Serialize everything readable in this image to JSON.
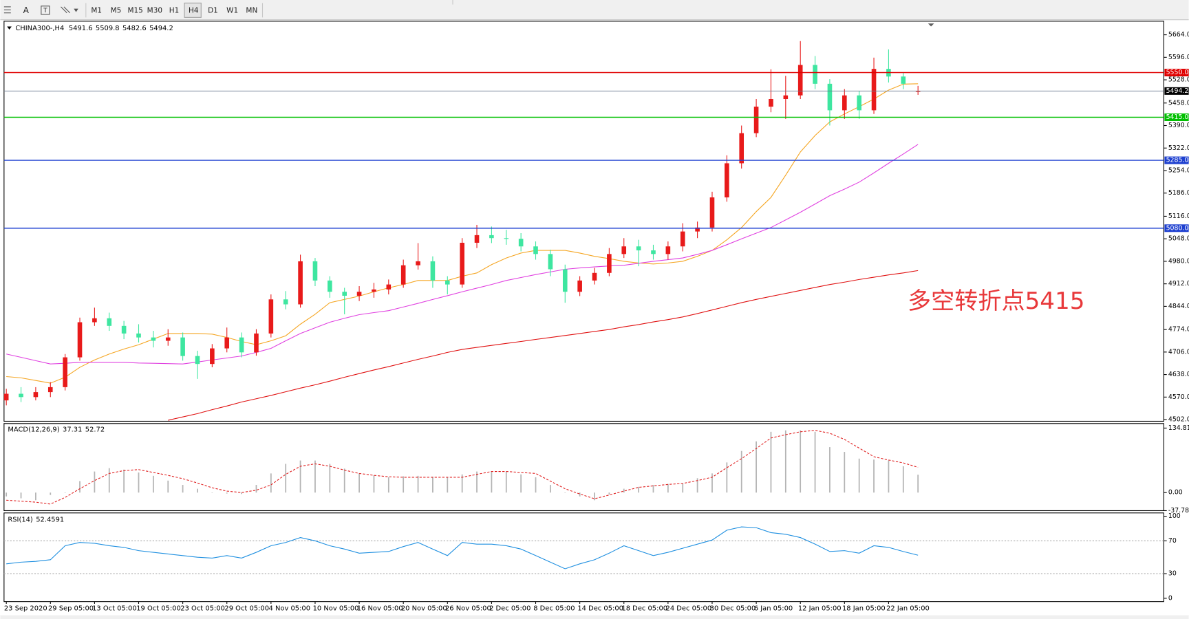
{
  "toolbar": {
    "text_tool": "A",
    "periods": [
      "M1",
      "M5",
      "M15",
      "M30",
      "H1",
      "H4",
      "D1",
      "W1",
      "MN"
    ]
  },
  "chart_data": [
    {
      "type": "candlestick",
      "symbol": "CHINA300-,H4",
      "annotation": "多空转折点5415",
      "up_color": "#e81a1a",
      "down_color": "#3ee6a0",
      "categories": [
        "23 Sep 2020",
        null,
        null,
        "29 Sep 05:00",
        null,
        null,
        "13 Oct 05:00",
        null,
        null,
        "19 Oct 05:00",
        null,
        null,
        "23 Oct 05:00",
        null,
        null,
        "29 Oct 05:00",
        null,
        null,
        "4 Nov 05:00",
        null,
        null,
        "10 Nov 05:00",
        null,
        null,
        "16 Nov 05:00",
        null,
        null,
        "20 Nov 05:00",
        null,
        null,
        "26 Nov 05:00",
        null,
        null,
        "2 Dec 05:00",
        null,
        null,
        "8 Dec 05:00",
        null,
        null,
        "14 Dec 05:00",
        null,
        null,
        "18 Dec 05:00",
        null,
        null,
        "24 Dec 05:00",
        null,
        null,
        "30 Dec 05:00",
        null,
        null,
        "6 Jan 05:00",
        null,
        null,
        "12 Jan 05:00",
        null,
        null,
        "18 Jan 05:00",
        null,
        null,
        "22 Jan 05:00",
        null,
        null
      ],
      "open": [
        4560,
        4580,
        4570,
        4585,
        4600,
        4690,
        4796,
        4808,
        4785,
        4762,
        4750,
        4740,
        4750,
        4694,
        4670,
        4717,
        4750,
        4705,
        4762,
        4865,
        4850,
        4980,
        4922,
        4888,
        4876,
        4888,
        4895,
        4910,
        4968,
        4980,
        4922,
        4910,
        5036,
        5059,
        5050,
        5048,
        5025,
        5002,
        4956,
        4888,
        4922,
        4945,
        5002,
        5025,
        5013,
        5002,
        5025,
        5070,
        5082,
        5173,
        5276,
        5367,
        5447,
        5470,
        5481,
        5573,
        5516,
        5436,
        5481,
        5436,
        5561,
        5538,
        5491.6
      ],
      "high": [
        4595,
        4600,
        4600,
        4615,
        4700,
        4810,
        4840,
        4825,
        4800,
        4790,
        4770,
        4775,
        4765,
        4710,
        4730,
        4780,
        4765,
        4775,
        4880,
        4890,
        5000,
        4990,
        4935,
        4900,
        4905,
        4915,
        4925,
        4985,
        5035,
        4995,
        4935,
        5050,
        5090,
        5085,
        5075,
        5065,
        5040,
        5015,
        4970,
        4935,
        4960,
        5020,
        5050,
        5045,
        5030,
        5040,
        5095,
        5100,
        5190,
        5300,
        5390,
        5470,
        5560,
        5540,
        5645,
        5600,
        5530,
        5500,
        5495,
        5595,
        5620,
        5550,
        5509.8
      ],
      "low": [
        4545,
        4555,
        4560,
        4570,
        4590,
        4680,
        4785,
        4770,
        4745,
        4735,
        4720,
        4725,
        4680,
        4625,
        4660,
        4705,
        4690,
        4695,
        4750,
        4835,
        4840,
        4905,
        4870,
        4820,
        4860,
        4870,
        4880,
        4900,
        4955,
        4900,
        4880,
        4900,
        5020,
        5035,
        5030,
        5010,
        4985,
        4935,
        4855,
        4875,
        4910,
        4935,
        4990,
        4965,
        4985,
        4985,
        5010,
        5050,
        5070,
        5160,
        5260,
        5355,
        5430,
        5410,
        5470,
        5500,
        5390,
        5410,
        5410,
        5425,
        5520,
        5500,
        5482.6
      ],
      "close": [
        4580,
        4570,
        4585,
        4600,
        4690,
        4796,
        4808,
        4785,
        4762,
        4750,
        4740,
        4750,
        4694,
        4670,
        4717,
        4750,
        4705,
        4762,
        4865,
        4850,
        4980,
        4922,
        4888,
        4876,
        4888,
        4895,
        4910,
        4968,
        4980,
        4922,
        4910,
        5036,
        5059,
        5050,
        5048,
        5025,
        5002,
        4956,
        4888,
        4922,
        4945,
        5002,
        5025,
        5013,
        5002,
        5025,
        5070,
        5082,
        5173,
        5276,
        5367,
        5447,
        5470,
        5481,
        5573,
        5516,
        5436,
        5481,
        5436,
        5561,
        5538,
        5516,
        5494.2
      ],
      "series": [
        {
          "color": "#f5a623",
          "values": [
            4632,
            4628,
            4620,
            4612,
            4630,
            4660,
            4682,
            4700,
            4715,
            4728,
            4745,
            4762,
            4762,
            4762,
            4760,
            4750,
            4738,
            4728,
            4740,
            4755,
            4790,
            4820,
            4855,
            4865,
            4875,
            4888,
            4900,
            4910,
            4922,
            4922,
            4922,
            4935,
            4945,
            4970,
            4990,
            5005,
            5013,
            5013,
            5013,
            5005,
            4995,
            4988,
            4980,
            4975,
            4972,
            4975,
            4980,
            4995,
            5013,
            5045,
            5082,
            5130,
            5173,
            5240,
            5310,
            5360,
            5401,
            5425,
            5447,
            5470,
            5497,
            5515,
            5516
          ]
        },
        {
          "color": "#e040e0",
          "values": [
            4700,
            4690,
            4680,
            4670,
            4672,
            4675,
            4675,
            4675,
            4675,
            4673,
            4672,
            4671,
            4670,
            4676,
            4682,
            4688,
            4694,
            4705,
            4717,
            4740,
            4762,
            4779,
            4796,
            4808,
            4819,
            4825,
            4831,
            4842,
            4853,
            4865,
            4876,
            4888,
            4899,
            4910,
            4922,
            4931,
            4940,
            4948,
            4956,
            4960,
            4963,
            4966,
            4968,
            4974,
            4980,
            4985,
            4990,
            5001,
            5013,
            5030,
            5048,
            5065,
            5082,
            5105,
            5128,
            5153,
            5178,
            5198,
            5219,
            5247,
            5276,
            5304,
            5333
          ]
        },
        {
          "color": "#e01010",
          "values": [
            null,
            null,
            null,
            null,
            null,
            null,
            null,
            null,
            null,
            null,
            null,
            4500,
            4510,
            4520,
            4532,
            4543,
            4555,
            4565,
            4575,
            4586,
            4597,
            4607,
            4618,
            4630,
            4641,
            4652,
            4662,
            4673,
            4684,
            4694,
            4705,
            4714,
            4720,
            4726,
            4732,
            4738,
            4744,
            4750,
            4756,
            4762,
            4768,
            4774,
            4782,
            4789,
            4797,
            4804,
            4812,
            4822,
            4833,
            4844,
            4855,
            4865,
            4874,
            4883,
            4892,
            4901,
            4910,
            4917,
            4925,
            4932,
            4939,
            4945,
            4952
          ]
        }
      ],
      "levels": [
        {
          "value": 5550,
          "label": "5550.0",
          "color": "#e00000"
        },
        {
          "value": 5415,
          "label": "5415.0",
          "color": "#00c000"
        },
        {
          "value": 5285,
          "label": "5285.0",
          "color": "#1e40d0"
        },
        {
          "value": 5080,
          "label": "5080.0",
          "color": "#1e40d0"
        }
      ],
      "ylim": [
        4497,
        5705
      ],
      "yticks": [
        {
          "value": 5664,
          "label": "5664.0"
        },
        {
          "value": 5596,
          "label": "5596.0"
        },
        {
          "value": 5528,
          "label": "5528.0"
        },
        {
          "value": 5458,
          "label": "5458.0"
        },
        {
          "value": 5390,
          "label": "5390.0"
        },
        {
          "value": 5322,
          "label": "5322.0"
        },
        {
          "value": 5254,
          "label": "5254.0"
        },
        {
          "value": 5186,
          "label": "5186.0"
        },
        {
          "value": 5116,
          "label": "5116.0"
        },
        {
          "value": 5048,
          "label": "5048.0"
        },
        {
          "value": 4980,
          "label": "4980.0"
        },
        {
          "value": 4912,
          "label": "4912.0"
        },
        {
          "value": 4844,
          "label": "4844.0"
        },
        {
          "value": 4774,
          "label": "4774.0"
        },
        {
          "value": 4706,
          "label": "4706.0"
        },
        {
          "value": 4638,
          "label": "4638.0"
        },
        {
          "value": 4570,
          "label": "4570.0"
        },
        {
          "value": 4502,
          "label": "4502.0"
        }
      ]
    },
    {
      "type": "macd",
      "title": "MACD(12,26,9)",
      "series": [
        {
          "type": "bar",
          "color": "#b4b4b4",
          "values": [
            -8,
            -12,
            -16,
            -5,
            0,
            24,
            44,
            51,
            48,
            42,
            35,
            25,
            16,
            8,
            0,
            -2,
            -3,
            16,
            40,
            60,
            67,
            67,
            60,
            50,
            40,
            36,
            32,
            34,
            35,
            33,
            32,
            38,
            44,
            44,
            44,
            38,
            32,
            16,
            0,
            -8,
            -16,
            -4,
            8,
            12,
            16,
            18,
            19,
            30,
            40,
            63,
            87,
            107,
            127,
            130,
            130,
            127,
            95,
            85,
            71,
            69,
            67,
            55,
            37.31
          ]
        },
        {
          "type": "line",
          "color": "#e02020",
          "values": [
            -16,
            -18,
            -20,
            -24,
            -10,
            8,
            25,
            40,
            46,
            48,
            42,
            36,
            29,
            20,
            10,
            3,
            0,
            5,
            16,
            38,
            55,
            60,
            55,
            47,
            40,
            36,
            33,
            32,
            32,
            32,
            32,
            32,
            38,
            44,
            44,
            42,
            40,
            24,
            8,
            -3,
            -13,
            -5,
            3,
            11,
            14,
            17,
            19,
            25,
            32,
            52,
            71,
            92,
            114,
            121,
            127,
            130,
            124,
            111,
            93,
            75,
            68,
            62,
            52.72
          ]
        }
      ],
      "ylim": [
        -37.78,
        144.3
      ],
      "yticks": [
        134.81,
        {
          "value": 0,
          "label": "0.00"
        },
        -37.78
      ]
    },
    {
      "type": "line",
      "title": "RSI(14)",
      "series": [
        {
          "color": "#1e8fe0",
          "values": [
            42,
            44,
            45,
            47,
            64,
            68,
            67,
            64,
            62,
            58,
            56,
            54,
            52,
            50,
            49,
            52,
            49,
            56,
            64,
            68,
            74,
            70,
            64,
            60,
            55,
            56,
            57,
            63,
            68,
            60,
            52,
            68,
            66,
            66,
            64,
            60,
            52,
            44,
            36,
            42,
            47,
            55,
            64,
            58,
            52,
            56,
            61,
            66,
            71,
            83,
            87,
            86,
            80,
            78,
            74,
            66,
            57,
            58,
            55,
            64,
            62,
            57,
            52.4591
          ]
        }
      ],
      "levels": [
        70,
        30
      ],
      "ylim": [
        -4,
        104
      ],
      "yticks": [
        100,
        70,
        30,
        0
      ]
    }
  ]
}
